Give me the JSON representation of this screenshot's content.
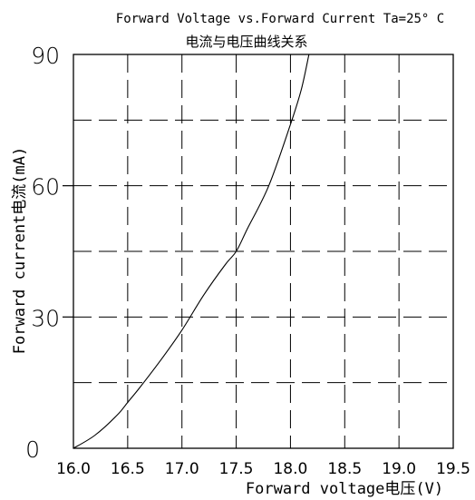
{
  "chart_data": {
    "type": "line",
    "title": "Forward Voltage vs.Forward Current Ta=25° C",
    "subtitle": "电流与电压曲线关系",
    "xlabel": "Forward voltage电压(V)",
    "ylabel": "Forward current电流(mA)",
    "xlim": [
      16.0,
      19.5
    ],
    "ylim": [
      0,
      90
    ],
    "x_ticks": [
      "16.0",
      "16.5",
      "17.0",
      "17.5",
      "18.0",
      "18.5",
      "19.0",
      "19.5"
    ],
    "y_ticks": [
      "0",
      "30",
      "60",
      "90"
    ],
    "grid": "dashed",
    "series": [
      {
        "x": [
          16.0,
          16.2,
          16.4,
          16.5,
          16.6,
          16.8,
          17.0,
          17.2,
          17.4,
          17.5,
          17.6,
          17.8,
          18.0,
          18.1,
          18.17
        ],
        "y": [
          0,
          3,
          7.5,
          10.5,
          13.5,
          20,
          27,
          35,
          42,
          45,
          50,
          60,
          74,
          82,
          90
        ]
      }
    ],
    "colors": {
      "line": "#000000",
      "grid": "#000000",
      "axis": "#000000",
      "background": "#ffffff"
    }
  }
}
